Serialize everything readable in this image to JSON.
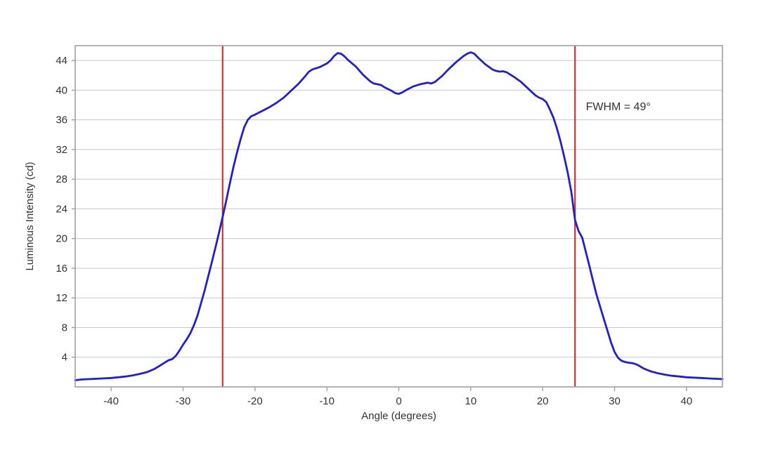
{
  "chart_data": {
    "type": "line",
    "title": "",
    "xlabel": "Angle (degrees)",
    "ylabel": "Luminous Intensity (cd)",
    "xlim": [
      -45,
      45
    ],
    "ylim": [
      0,
      46
    ],
    "x_ticks": [
      -40,
      -30,
      -20,
      -10,
      0,
      10,
      20,
      30,
      40
    ],
    "y_ticks": [
      4,
      8,
      12,
      16,
      20,
      24,
      28,
      32,
      36,
      40,
      44
    ],
    "grid": "horizontal",
    "legend": "none",
    "annotation": {
      "text": "FWHM = 49°",
      "x": 26,
      "y": 37.3
    },
    "fwhm_lines": {
      "x_values": [
        -24.5,
        24.5
      ],
      "fwhm_degrees": 49
    },
    "series": [
      {
        "name": "luminous-intensity-curve",
        "points": [
          [
            -45,
            0.9
          ],
          [
            -44,
            1.0
          ],
          [
            -43,
            1.05
          ],
          [
            -42,
            1.1
          ],
          [
            -41,
            1.15
          ],
          [
            -40,
            1.2
          ],
          [
            -39,
            1.3
          ],
          [
            -38,
            1.4
          ],
          [
            -37,
            1.55
          ],
          [
            -36,
            1.75
          ],
          [
            -35,
            2.0
          ],
          [
            -34,
            2.4
          ],
          [
            -33.5,
            2.7
          ],
          [
            -33,
            3.0
          ],
          [
            -32.5,
            3.3
          ],
          [
            -32,
            3.6
          ],
          [
            -31.5,
            3.75
          ],
          [
            -31,
            4.2
          ],
          [
            -30.5,
            4.9
          ],
          [
            -30,
            5.7
          ],
          [
            -29.5,
            6.4
          ],
          [
            -29,
            7.2
          ],
          [
            -28.5,
            8.3
          ],
          [
            -28,
            9.6
          ],
          [
            -27.5,
            11.3
          ],
          [
            -27,
            13.0
          ],
          [
            -26.5,
            14.9
          ],
          [
            -26,
            16.8
          ],
          [
            -25.5,
            18.8
          ],
          [
            -25,
            20.8
          ],
          [
            -24.5,
            22.9
          ],
          [
            -24,
            25.1
          ],
          [
            -23.5,
            27.4
          ],
          [
            -23,
            29.6
          ],
          [
            -22.5,
            31.6
          ],
          [
            -22,
            33.4
          ],
          [
            -21.5,
            35.0
          ],
          [
            -21,
            36.0
          ],
          [
            -20.5,
            36.5
          ],
          [
            -20,
            36.7
          ],
          [
            -19,
            37.2
          ],
          [
            -18,
            37.7
          ],
          [
            -17,
            38.3
          ],
          [
            -16,
            39.0
          ],
          [
            -15,
            39.9
          ],
          [
            -14,
            40.8
          ],
          [
            -13,
            41.9
          ],
          [
            -12.5,
            42.5
          ],
          [
            -12,
            42.8
          ],
          [
            -11,
            43.1
          ],
          [
            -10,
            43.6
          ],
          [
            -9.5,
            44.0
          ],
          [
            -9,
            44.6
          ],
          [
            -8.5,
            45.0
          ],
          [
            -8,
            44.9
          ],
          [
            -7.5,
            44.5
          ],
          [
            -7,
            44.0
          ],
          [
            -6,
            43.2
          ],
          [
            -5,
            42.1
          ],
          [
            -4,
            41.2
          ],
          [
            -3.5,
            40.9
          ],
          [
            -3,
            40.8
          ],
          [
            -2.5,
            40.7
          ],
          [
            -2,
            40.4
          ],
          [
            -1,
            39.9
          ],
          [
            -0.5,
            39.6
          ],
          [
            0,
            39.5
          ],
          [
            0.5,
            39.7
          ],
          [
            1,
            40.0
          ],
          [
            2,
            40.5
          ],
          [
            3,
            40.8
          ],
          [
            3.5,
            40.9
          ],
          [
            4,
            41.0
          ],
          [
            4.5,
            40.9
          ],
          [
            5,
            41.1
          ],
          [
            6,
            41.9
          ],
          [
            7,
            42.9
          ],
          [
            8,
            43.8
          ],
          [
            9,
            44.6
          ],
          [
            9.5,
            44.9
          ],
          [
            10,
            45.1
          ],
          [
            10.5,
            44.9
          ],
          [
            11,
            44.4
          ],
          [
            12,
            43.5
          ],
          [
            13,
            42.8
          ],
          [
            13.5,
            42.6
          ],
          [
            14,
            42.5
          ],
          [
            14.5,
            42.55
          ],
          [
            15,
            42.4
          ],
          [
            16,
            41.8
          ],
          [
            17,
            41.1
          ],
          [
            18,
            40.2
          ],
          [
            19,
            39.3
          ],
          [
            19.5,
            39.0
          ],
          [
            20,
            38.8
          ],
          [
            20.5,
            38.4
          ],
          [
            21,
            37.4
          ],
          [
            21.5,
            36.3
          ],
          [
            22,
            34.8
          ],
          [
            22.5,
            33.0
          ],
          [
            23,
            31.0
          ],
          [
            23.5,
            28.8
          ],
          [
            24,
            26.2
          ],
          [
            24.5,
            22.5
          ],
          [
            25,
            21.0
          ],
          [
            25.5,
            20.1
          ],
          [
            26,
            18.2
          ],
          [
            26.5,
            16.3
          ],
          [
            27,
            14.3
          ],
          [
            27.5,
            12.4
          ],
          [
            28,
            10.8
          ],
          [
            28.5,
            9.2
          ],
          [
            29,
            7.6
          ],
          [
            29.5,
            6.0
          ],
          [
            30,
            4.7
          ],
          [
            30.5,
            3.9
          ],
          [
            31,
            3.5
          ],
          [
            31.5,
            3.35
          ],
          [
            32,
            3.25
          ],
          [
            32.5,
            3.2
          ],
          [
            33,
            3.05
          ],
          [
            33.5,
            2.8
          ],
          [
            34,
            2.5
          ],
          [
            35,
            2.1
          ],
          [
            36,
            1.85
          ],
          [
            37,
            1.65
          ],
          [
            38,
            1.5
          ],
          [
            39,
            1.4
          ],
          [
            40,
            1.3
          ],
          [
            41,
            1.25
          ],
          [
            42,
            1.2
          ],
          [
            43,
            1.15
          ],
          [
            44,
            1.1
          ],
          [
            45,
            1.05
          ]
        ]
      }
    ],
    "colors": {
      "series": "#2121C8",
      "fwhm_line": "#CC3333",
      "grid": "#C8C8C8",
      "border": "#A0A0A0",
      "text": "#333333",
      "background": "#FFFFFF"
    }
  }
}
